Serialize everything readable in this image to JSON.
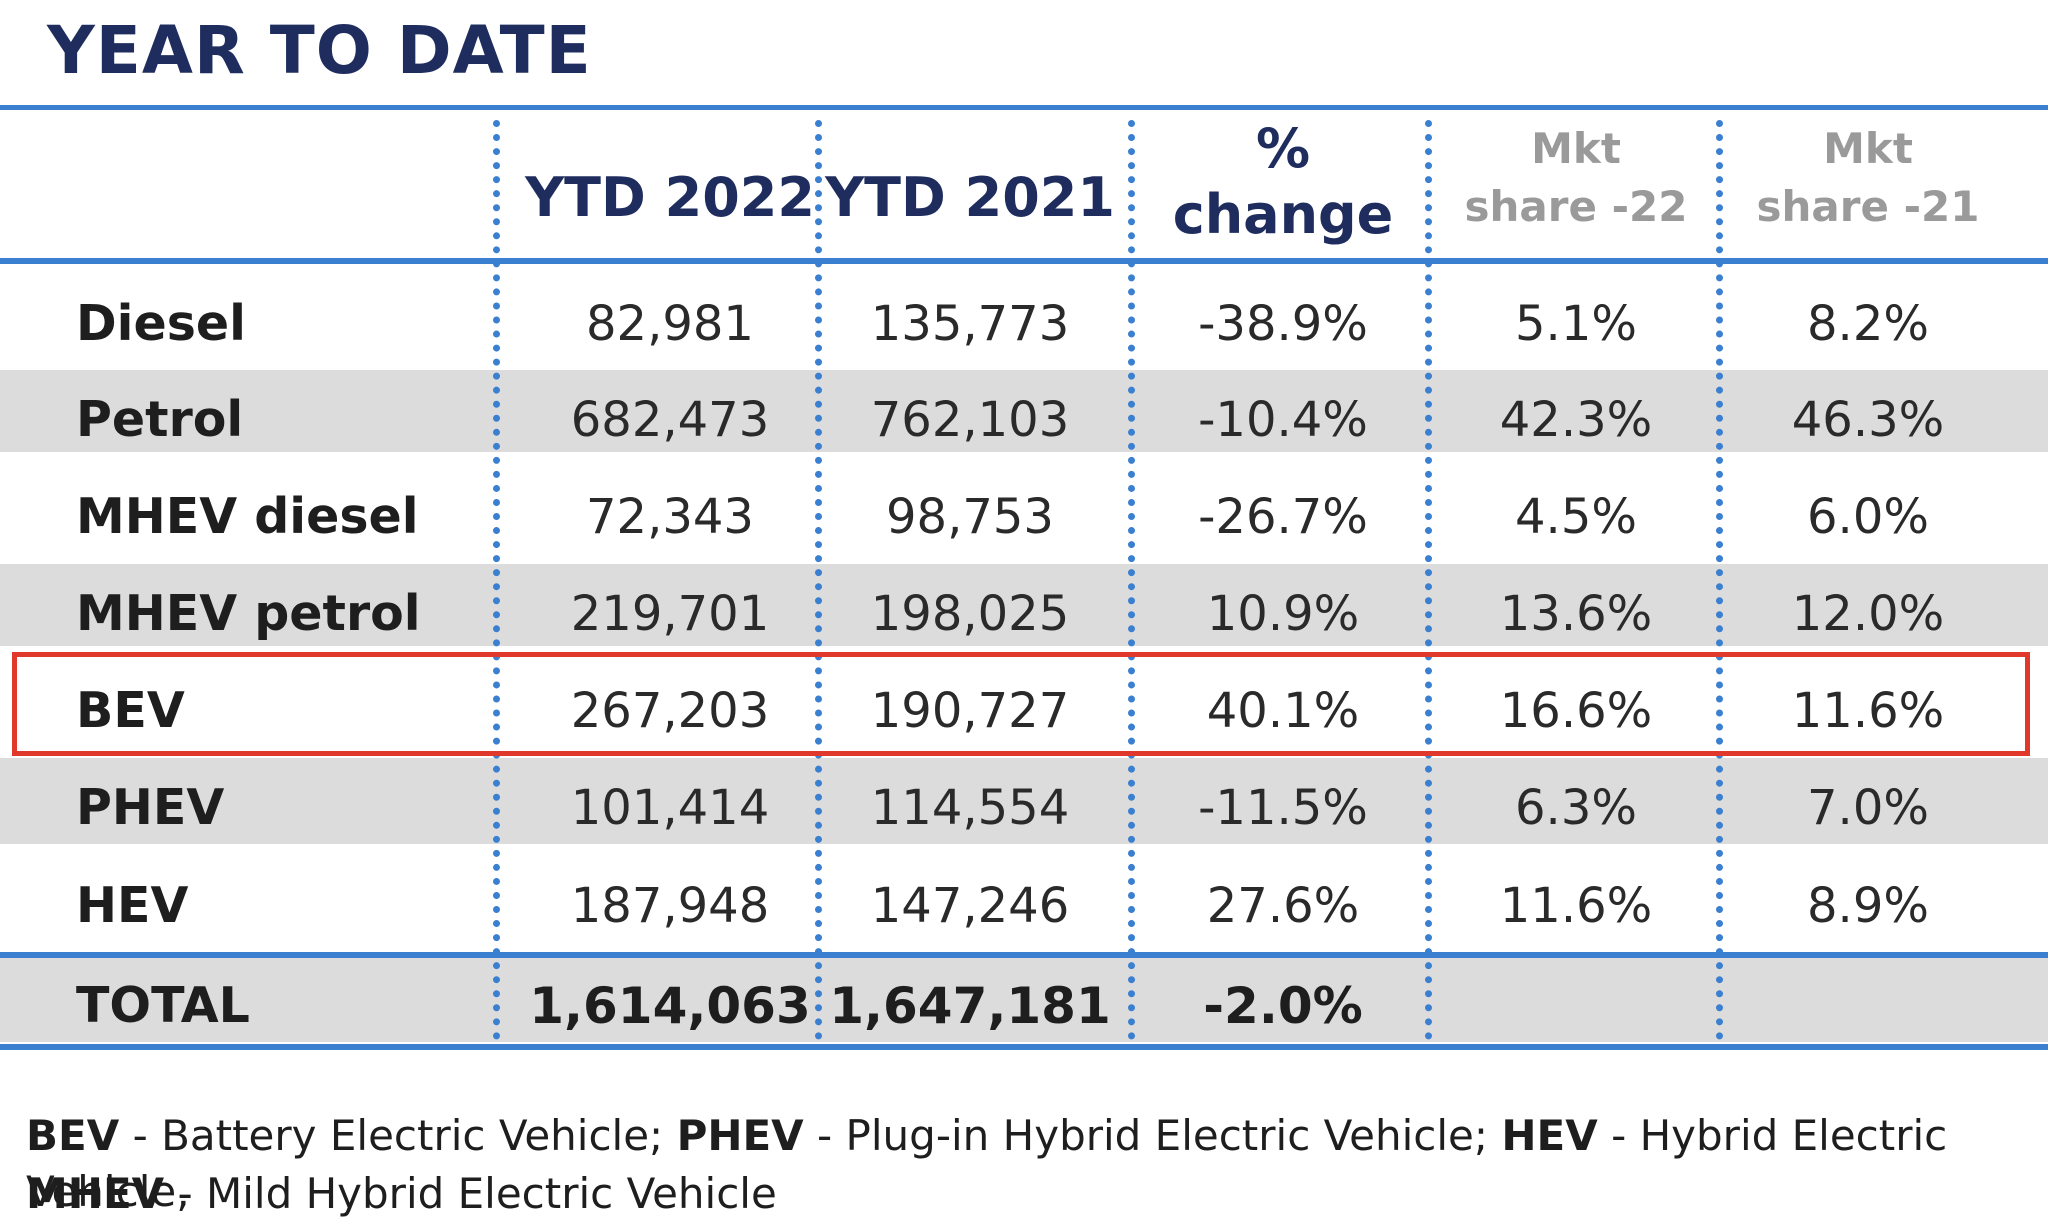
{
  "title": "YEAR TO DATE",
  "chart_data": {
    "type": "table",
    "columns": [
      {
        "key": "ytd2022",
        "label": [
          "YTD 2022"
        ]
      },
      {
        "key": "ytd2021",
        "label": [
          "YTD 2021"
        ]
      },
      {
        "key": "pct",
        "label": [
          "%",
          "change"
        ]
      },
      {
        "key": "mkt22",
        "label": [
          "Mkt",
          "share -22"
        ]
      },
      {
        "key": "mkt21",
        "label": [
          "Mkt",
          "share -21"
        ]
      }
    ],
    "rows": [
      {
        "label": "Diesel",
        "values": [
          "82,981",
          "135,773",
          "-38.9%",
          "5.1%",
          "8.2%"
        ]
      },
      {
        "label": "Petrol",
        "values": [
          "682,473",
          "762,103",
          "-10.4%",
          "42.3%",
          "46.3%"
        ]
      },
      {
        "label": "MHEV diesel",
        "values": [
          "72,343",
          "98,753",
          "-26.7%",
          "4.5%",
          "6.0%"
        ]
      },
      {
        "label": "MHEV petrol",
        "values": [
          "219,701",
          "198,025",
          "10.9%",
          "13.6%",
          "12.0%"
        ]
      },
      {
        "label": "BEV",
        "values": [
          "267,203",
          "190,727",
          "40.1%",
          "16.6%",
          "11.6%"
        ],
        "highlighted": true
      },
      {
        "label": "PHEV",
        "values": [
          "101,414",
          "114,554",
          "-11.5%",
          "6.3%",
          "7.0%"
        ]
      },
      {
        "label": "HEV",
        "values": [
          "187,948",
          "147,246",
          "27.6%",
          "11.6%",
          "8.9%"
        ]
      }
    ],
    "total": {
      "label": "TOTAL",
      "values": [
        "1,614,063",
        "1,647,181",
        "-2.0%",
        "",
        ""
      ]
    }
  },
  "footnote": {
    "line1": [
      {
        "abbr": "BEV",
        "desc": " - Battery Electric Vehicle; "
      },
      {
        "abbr": "PHEV",
        "desc": " - Plug-in Hybrid Electric Vehicle; "
      },
      {
        "abbr": "HEV",
        "desc": " - Hybrid Electric Vehicle,"
      }
    ],
    "line2": [
      {
        "abbr": "MHEV",
        "desc": " - Mild Hybrid Electric Vehicle"
      }
    ]
  },
  "colors": {
    "accent": "#3b7fd0",
    "title": "#1f2d5e",
    "highlight": "#e0392b",
    "band": "#dcdcdc"
  }
}
